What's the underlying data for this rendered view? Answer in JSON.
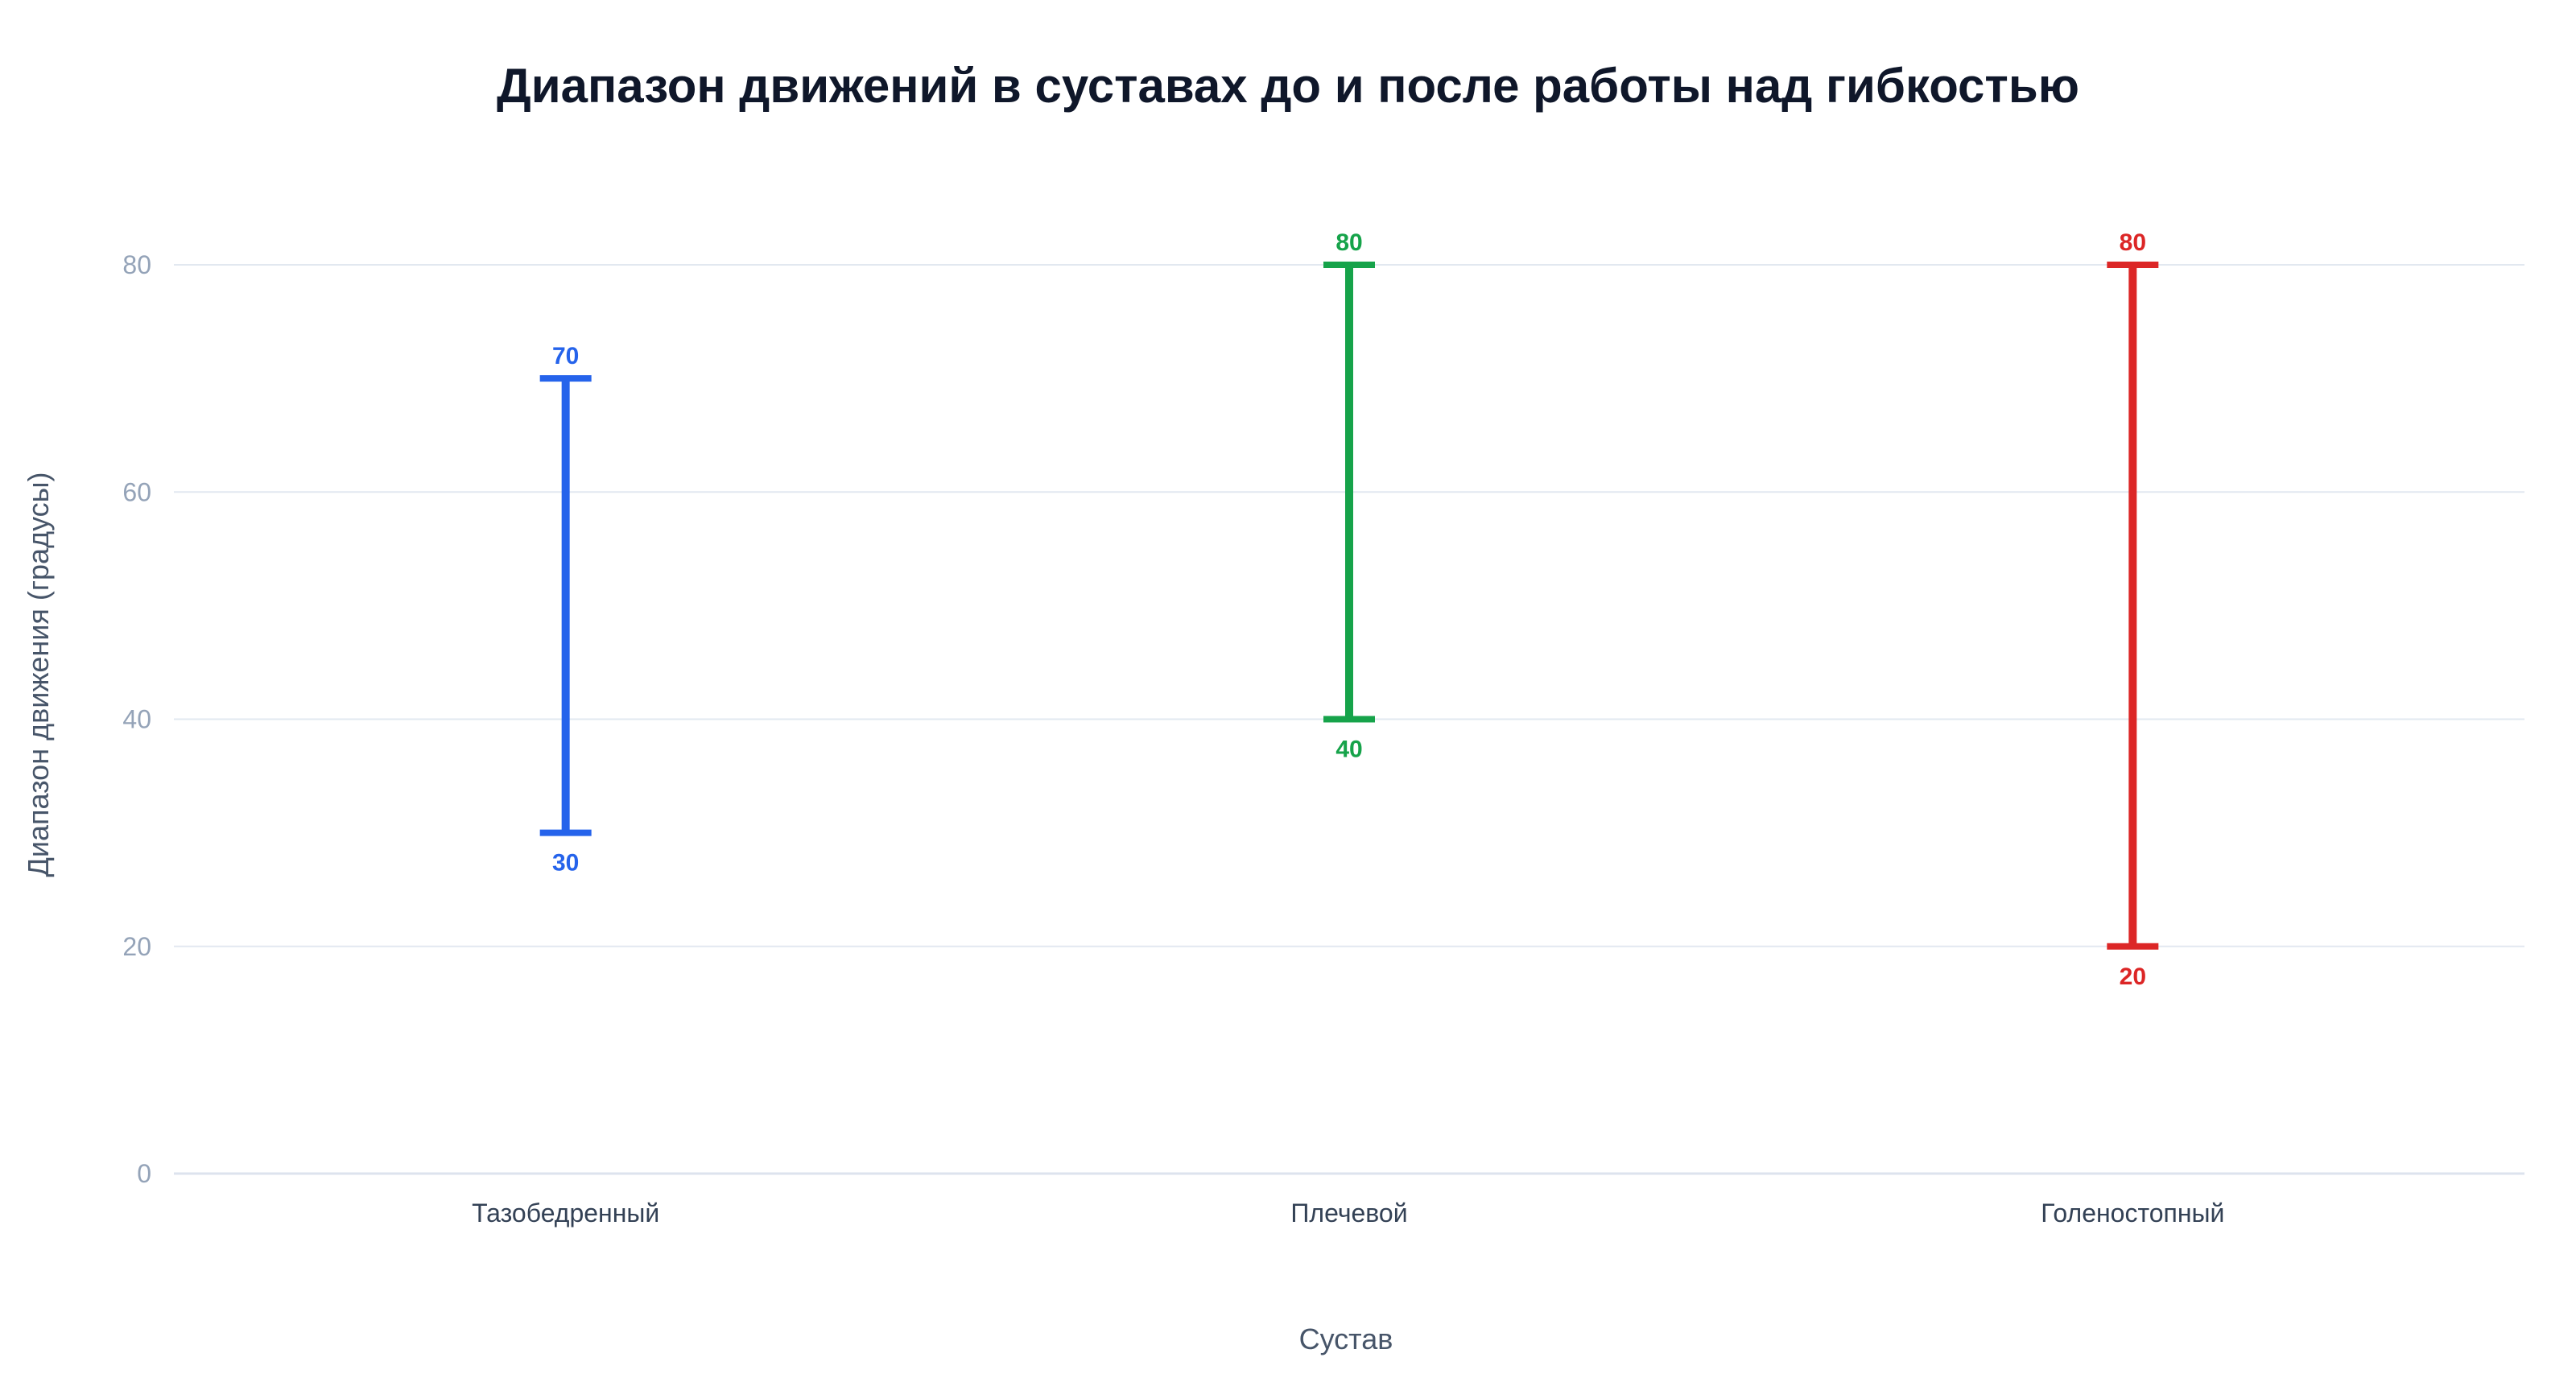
{
  "chart_data": {
    "type": "range",
    "title": "Диапазон движений в суставах до и после работы над гибкостью",
    "xlabel": "Сустав",
    "ylabel": "Диапазон движения (градусы)",
    "ylim": [
      0,
      88
    ],
    "yticks": [
      0,
      20,
      40,
      60,
      80
    ],
    "grid": true,
    "categories": [
      "Тазобедренный",
      "Плечевой",
      "Голеностопный"
    ],
    "low": [
      30,
      40,
      20
    ],
    "high": [
      70,
      80,
      80
    ],
    "colors": [
      "#2563eb",
      "#16a34a",
      "#dc2626"
    ]
  }
}
